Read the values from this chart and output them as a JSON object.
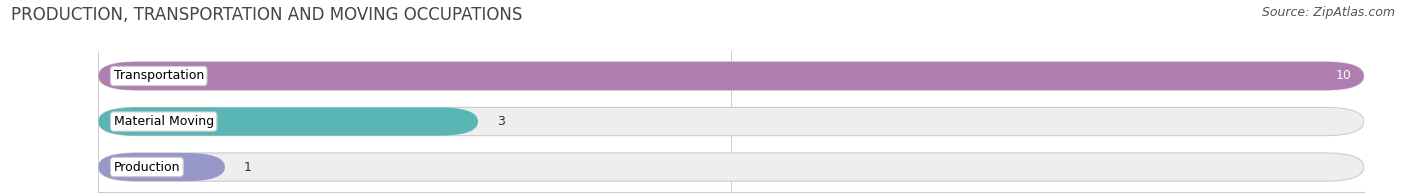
{
  "title": "PRODUCTION, TRANSPORTATION AND MOVING OCCUPATIONS",
  "source": "Source: ZipAtlas.com",
  "categories": [
    "Transportation",
    "Material Moving",
    "Production"
  ],
  "values": [
    10,
    3,
    1
  ],
  "bar_colors": [
    "#b07db0",
    "#5ab5b5",
    "#9898c8"
  ],
  "xlim": [
    0,
    10
  ],
  "xticks": [
    0,
    5,
    10
  ],
  "background_color": "#ffffff",
  "bar_background_color": "#eeeeee",
  "title_fontsize": 12,
  "source_fontsize": 9,
  "label_fontsize": 9,
  "value_fontsize": 9,
  "figsize": [
    14.06,
    1.96
  ],
  "dpi": 100
}
